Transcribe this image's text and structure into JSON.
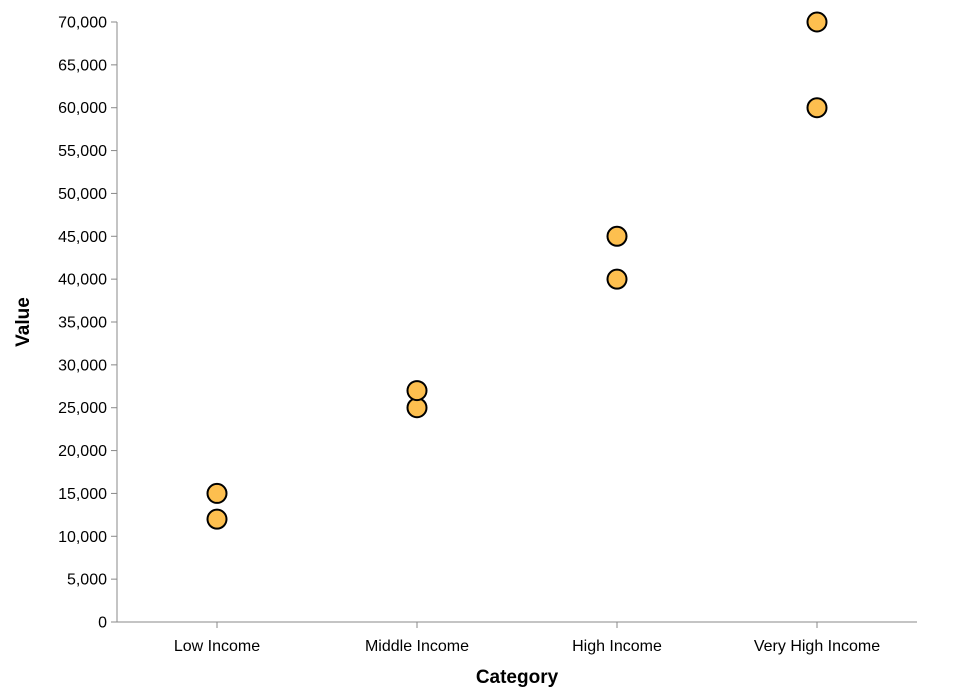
{
  "chart_data": {
    "type": "scatter",
    "categories": [
      "Low Income",
      "Middle Income",
      "High Income",
      "Very High Income"
    ],
    "points": [
      {
        "x": "Low Income",
        "y": 12000
      },
      {
        "x": "Low Income",
        "y": 15000
      },
      {
        "x": "Middle Income",
        "y": 25000
      },
      {
        "x": "Middle Income",
        "y": 27000
      },
      {
        "x": "High Income",
        "y": 40000
      },
      {
        "x": "High Income",
        "y": 45000
      },
      {
        "x": "Very High Income",
        "y": 60000
      },
      {
        "x": "Very High Income",
        "y": 70000
      }
    ],
    "y_ticks": [
      "0",
      "5,000",
      "10,000",
      "15,000",
      "20,000",
      "25,000",
      "30,000",
      "35,000",
      "40,000",
      "45,000",
      "50,000",
      "55,000",
      "60,000",
      "65,000",
      "70,000"
    ],
    "xlabel": "Category",
    "ylabel": "Value",
    "ylim": [
      0,
      70000
    ],
    "grid": false,
    "colors": {
      "point_fill": "#FDBF4F",
      "point_stroke": "#000000",
      "axis": "#888888"
    }
  }
}
